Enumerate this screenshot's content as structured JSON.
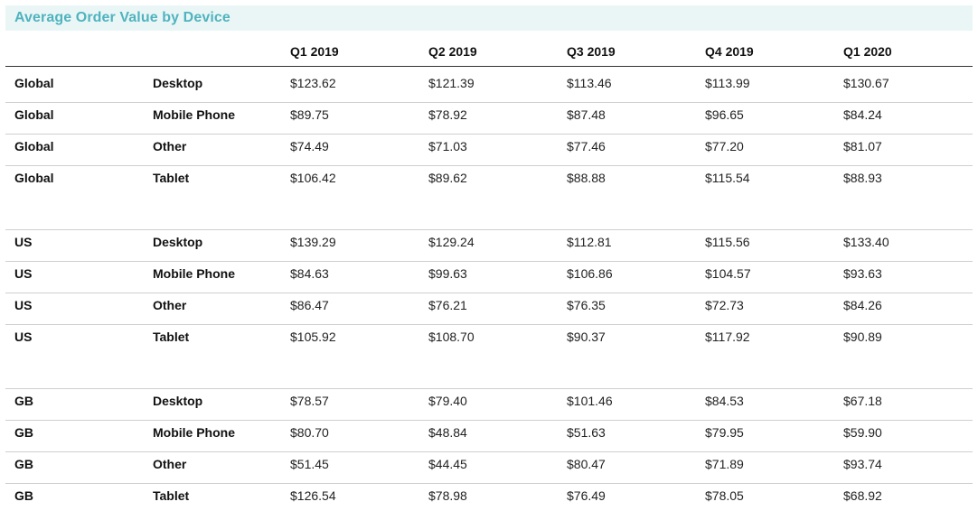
{
  "title": "Average Order Value by Device",
  "colors": {
    "title": "#4fb3bf",
    "title_bg": "#eaf6f6",
    "rule": "#cfcfcf",
    "header_rule": "#333333"
  },
  "chart_data": {
    "type": "table",
    "title": "Average Order Value by Device",
    "columns": [
      "Q1 2019",
      "Q2 2019",
      "Q3 2019",
      "Q4 2019",
      "Q1 2020"
    ],
    "groups": [
      {
        "region": "Global",
        "rows": [
          {
            "region": "Global",
            "device": "Desktop",
            "values": [
              "$123.62",
              "$121.39",
              "$113.46",
              "$113.99",
              "$130.67"
            ]
          },
          {
            "region": "Global",
            "device": "Mobile Phone",
            "values": [
              "$89.75",
              "$78.92",
              "$87.48",
              "$96.65",
              "$84.24"
            ]
          },
          {
            "region": "Global",
            "device": "Other",
            "values": [
              "$74.49",
              "$71.03",
              "$77.46",
              "$77.20",
              "$81.07"
            ]
          },
          {
            "region": "Global",
            "device": "Tablet",
            "values": [
              "$106.42",
              "$89.62",
              "$88.88",
              "$115.54",
              "$88.93"
            ]
          }
        ]
      },
      {
        "region": "US",
        "rows": [
          {
            "region": "US",
            "device": "Desktop",
            "values": [
              "$139.29",
              "$129.24",
              "$112.81",
              "$115.56",
              "$133.40"
            ]
          },
          {
            "region": "US",
            "device": "Mobile Phone",
            "values": [
              "$84.63",
              "$99.63",
              "$106.86",
              "$104.57",
              "$93.63"
            ]
          },
          {
            "region": "US",
            "device": "Other",
            "values": [
              "$86.47",
              "$76.21",
              "$76.35",
              "$72.73",
              "$84.26"
            ]
          },
          {
            "region": "US",
            "device": "Tablet",
            "values": [
              "$105.92",
              "$108.70",
              "$90.37",
              "$117.92",
              "$90.89"
            ]
          }
        ]
      },
      {
        "region": "GB",
        "rows": [
          {
            "region": "GB",
            "device": "Desktop",
            "values": [
              "$78.57",
              "$79.40",
              "$101.46",
              "$84.53",
              "$67.18"
            ]
          },
          {
            "region": "GB",
            "device": "Mobile Phone",
            "values": [
              "$80.70",
              "$48.84",
              "$51.63",
              "$79.95",
              "$59.90"
            ]
          },
          {
            "region": "GB",
            "device": "Other",
            "values": [
              "$51.45",
              "$44.45",
              "$80.47",
              "$71.89",
              "$93.74"
            ]
          },
          {
            "region": "GB",
            "device": "Tablet",
            "values": [
              "$126.54",
              "$78.98",
              "$76.49",
              "$78.05",
              "$68.92"
            ]
          }
        ]
      }
    ]
  }
}
